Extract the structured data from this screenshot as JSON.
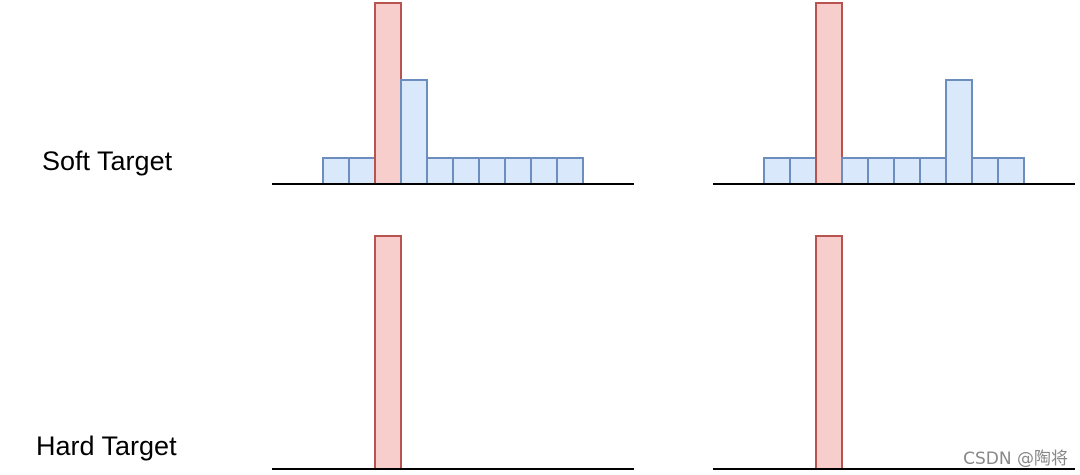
{
  "labels": {
    "soft": "Soft Target",
    "hard": "Hard Target"
  },
  "watermark": "CSDN @陶将"
}
